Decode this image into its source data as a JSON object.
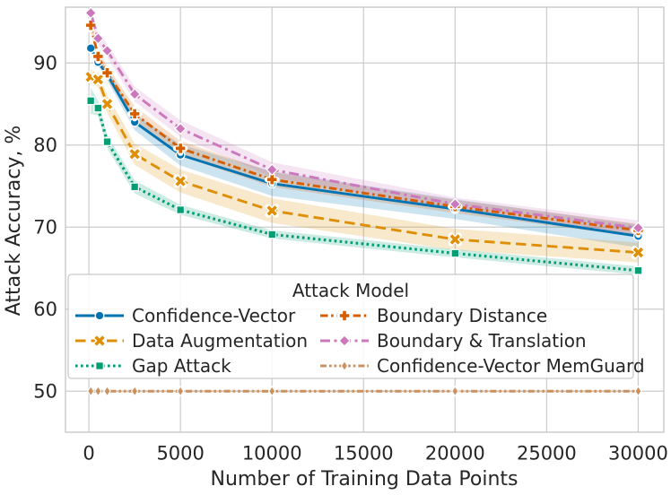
{
  "chart_data": {
    "type": "line",
    "title": "",
    "xlabel": "Number of Training Data Points",
    "ylabel": "Attack Accuracy, %",
    "legend_title": "Attack Model",
    "legend_position": "lower-center-inside",
    "grid": true,
    "xlim": [
      -1280,
      31400
    ],
    "ylim": [
      45.0,
      96.8
    ],
    "xticks": [
      0,
      5000,
      10000,
      15000,
      20000,
      25000,
      30000
    ],
    "yticks": [
      50,
      60,
      70,
      80,
      90
    ],
    "x": [
      100,
      500,
      1000,
      2500,
      5000,
      10000,
      20000,
      30000
    ],
    "series": [
      {
        "name": "Confidence-Vector",
        "color": "#0173b2",
        "line": "solid",
        "marker": "circle",
        "values": [
          91.8,
          90.1,
          88.6,
          82.8,
          78.8,
          75.3,
          72.2,
          68.9
        ],
        "band": [
          0.4,
          0.5,
          0.7,
          1.0,
          1.3,
          1.5,
          1.2,
          1.4
        ]
      },
      {
        "name": "Data Augmentation",
        "color": "#de8f05",
        "line": "dashed",
        "marker": "x",
        "values": [
          88.3,
          88.0,
          85.0,
          78.9,
          75.6,
          72.0,
          68.5,
          66.9
        ],
        "band": [
          0.9,
          0.9,
          1.1,
          1.3,
          1.4,
          1.5,
          1.3,
          1.2
        ]
      },
      {
        "name": "Gap Attack",
        "color": "#029e73",
        "line": "dotted",
        "marker": "square",
        "values": [
          85.4,
          84.5,
          80.4,
          74.9,
          72.1,
          69.1,
          66.8,
          64.7
        ],
        "band": [
          1.6,
          0.9,
          0.8,
          0.8,
          0.6,
          0.5,
          0.5,
          0.5
        ]
      },
      {
        "name": "Boundary Distance",
        "color": "#d55e00",
        "line": "dashdot",
        "marker": "plus",
        "values": [
          94.6,
          90.8,
          88.8,
          83.8,
          79.6,
          75.8,
          72.5,
          69.6
        ],
        "band": [
          0.8,
          0.8,
          0.8,
          0.9,
          0.9,
          0.9,
          0.8,
          0.8
        ]
      },
      {
        "name": "Boundary & Translation",
        "color": "#cc78bc",
        "line": "longdashdot",
        "marker": "diamond",
        "values": [
          96.1,
          93.0,
          91.5,
          86.2,
          82.0,
          77.0,
          72.8,
          69.9
        ],
        "band": [
          0.5,
          0.7,
          0.8,
          0.9,
          1.0,
          0.9,
          0.8,
          0.9
        ]
      },
      {
        "name": "Confidence-Vector MemGuard",
        "color": "#ca9161",
        "line": "dashdotdot",
        "marker": "thin-diamond",
        "values": [
          50,
          50,
          50,
          50,
          50,
          50,
          50,
          50
        ],
        "band": [
          0.15,
          0.15,
          0.15,
          0.15,
          0.15,
          0.15,
          0.15,
          0.15
        ]
      }
    ],
    "colors": {
      "grid": "#cccccc",
      "border": "#c9c9c9",
      "text": "#262626",
      "band_alpha": 0.2
    }
  }
}
